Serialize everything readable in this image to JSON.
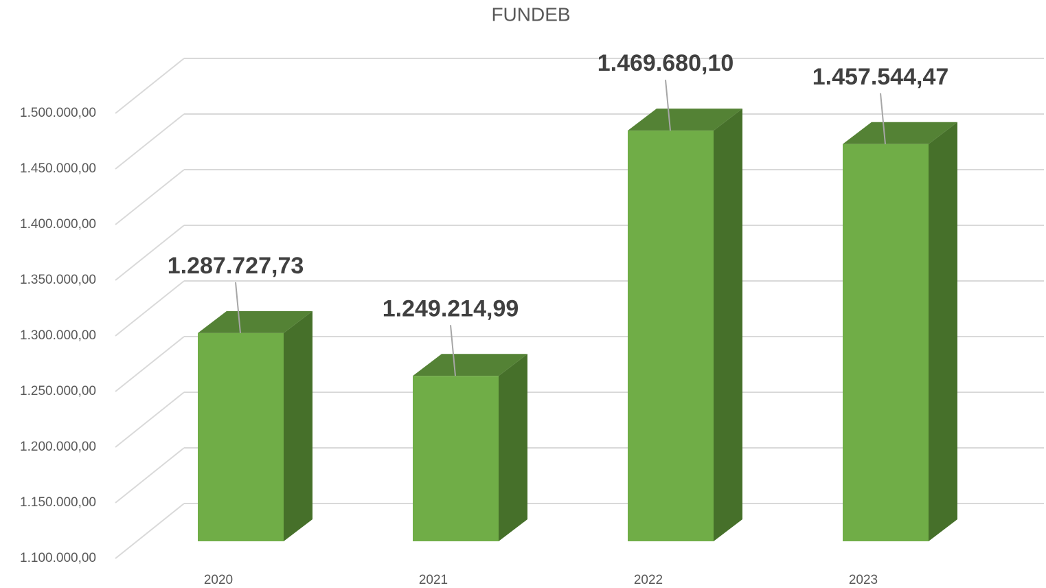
{
  "chart_data": {
    "type": "bar3d",
    "title": "FUNDEB",
    "categories": [
      "2020",
      "2021",
      "2022",
      "2023"
    ],
    "values": [
      1287727.73,
      1249214.99,
      1469680.1,
      1457544.47
    ],
    "value_labels": [
      "1.287.727,73",
      "1.249.214,99",
      "1.469.680,10",
      "1.457.544,47"
    ],
    "color": "#70ad47",
    "ylim": [
      1100000,
      1500000
    ],
    "yticks": [
      {
        "value": 1100000,
        "label": "1.100.000,00"
      },
      {
        "value": 1150000,
        "label": "1.150.000,00"
      },
      {
        "value": 1200000,
        "label": "1.200.000,00"
      },
      {
        "value": 1250000,
        "label": "1.250.000,00"
      },
      {
        "value": 1300000,
        "label": "1.300.000,00"
      },
      {
        "value": 1350000,
        "label": "1.350.000,00"
      },
      {
        "value": 1400000,
        "label": "1.400.000,00"
      },
      {
        "value": 1450000,
        "label": "1.450.000,00"
      },
      {
        "value": 1500000,
        "label": "1.500.000,00"
      }
    ],
    "grid": true
  }
}
